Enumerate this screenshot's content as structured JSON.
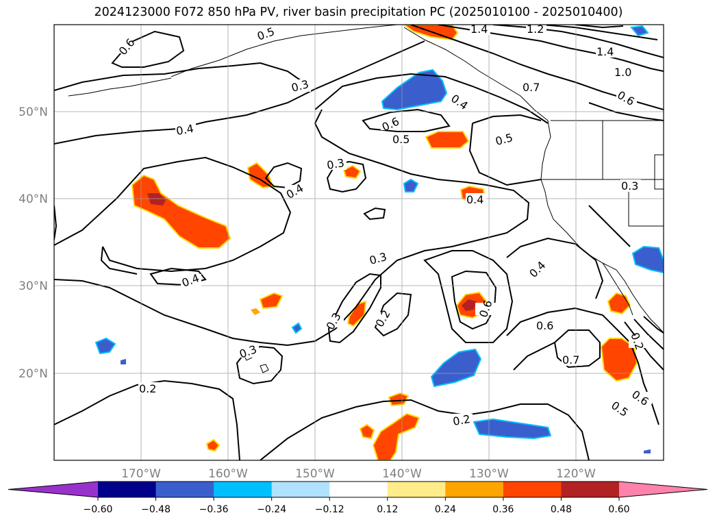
{
  "title": "2024123000 F072 850 hPa PV, river basin precipitation PC (2025010100 - 2025010400)",
  "map": {
    "lon_labels": [
      "170°W",
      "160°W",
      "150°W",
      "140°W",
      "130°W",
      "120°W"
    ],
    "lat_labels": [
      "50°N",
      "40°N",
      "30°N",
      "20°N"
    ],
    "contour_labels": [
      "0.6",
      "0.5",
      "1.4",
      "1.2",
      "1.4",
      "1.0",
      "0.7",
      "0.6",
      "0.3",
      "0.6",
      "0.4",
      "0.4",
      "0.5",
      "0.5",
      "0.3",
      "0.4",
      "0.4",
      "0.3",
      "0.3",
      "0.2",
      "0.4",
      "0.4",
      "0.6",
      "0.6",
      "0.7",
      "0.3",
      "0.2",
      "0.3",
      "0.2",
      "0.2",
      "0.6",
      "0.5"
    ]
  },
  "colorbar": {
    "ticks": [
      "−0.60",
      "−0.48",
      "−0.36",
      "−0.24",
      "−0.12",
      "0.12",
      "0.24",
      "0.36",
      "0.48",
      "0.60"
    ],
    "colors": [
      "#9932cc",
      "#00008b",
      "#3a5fcd",
      "#00bfff",
      "#b0e2ff",
      "#ffffff",
      "#ffec8b",
      "#ffa500",
      "#ff4500",
      "#b22222",
      "#ff82ab"
    ]
  },
  "chart_data": {
    "type": "map",
    "title": "2024123000 F072 850 hPa PV, river basin precipitation PC (2025010100 - 2025010400)",
    "lon_range": [
      -180,
      -110
    ],
    "lat_range": [
      10,
      60
    ],
    "grid": true,
    "contour_levels": [
      0.2,
      0.3,
      0.4,
      0.5,
      0.6,
      0.7,
      1.0,
      1.2,
      1.4
    ],
    "colorbar_levels": [
      -0.6,
      -0.48,
      -0.36,
      -0.24,
      -0.12,
      0.12,
      0.24,
      0.36,
      0.48,
      0.6
    ]
  }
}
